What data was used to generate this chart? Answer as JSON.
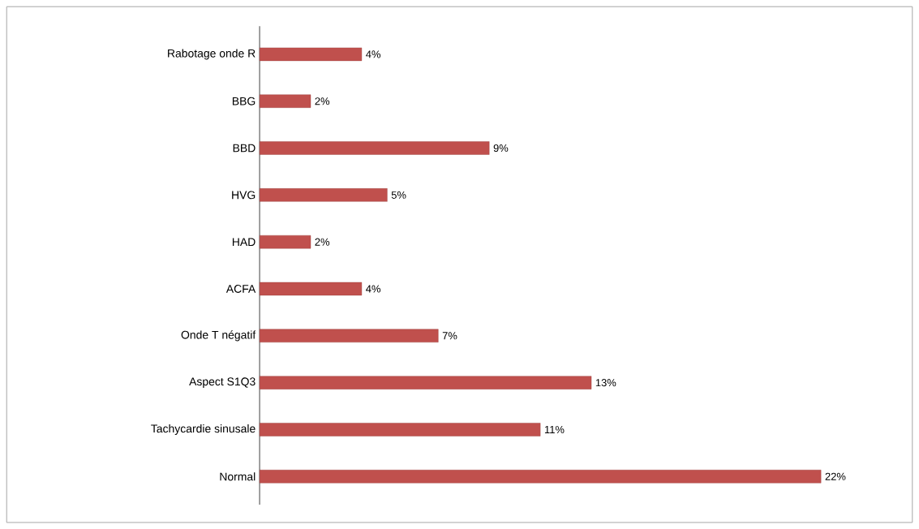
{
  "chart_data": {
    "type": "bar",
    "orientation": "horizontal",
    "categories": [
      "Rabotage onde R",
      "BBG",
      "BBD",
      "HVG",
      "HAD",
      "ACFA",
      "Onde T négatif",
      "Aspect S1Q3",
      "Tachycardie sinusale",
      "Normal"
    ],
    "values": [
      4,
      2,
      9,
      5,
      2,
      4,
      7,
      13,
      11,
      22
    ],
    "value_labels": [
      "4%",
      "2%",
      "9%",
      "5%",
      "2%",
      "4%",
      "7%",
      "13%",
      "11%",
      "22%"
    ],
    "color": "#c0504d"
  }
}
